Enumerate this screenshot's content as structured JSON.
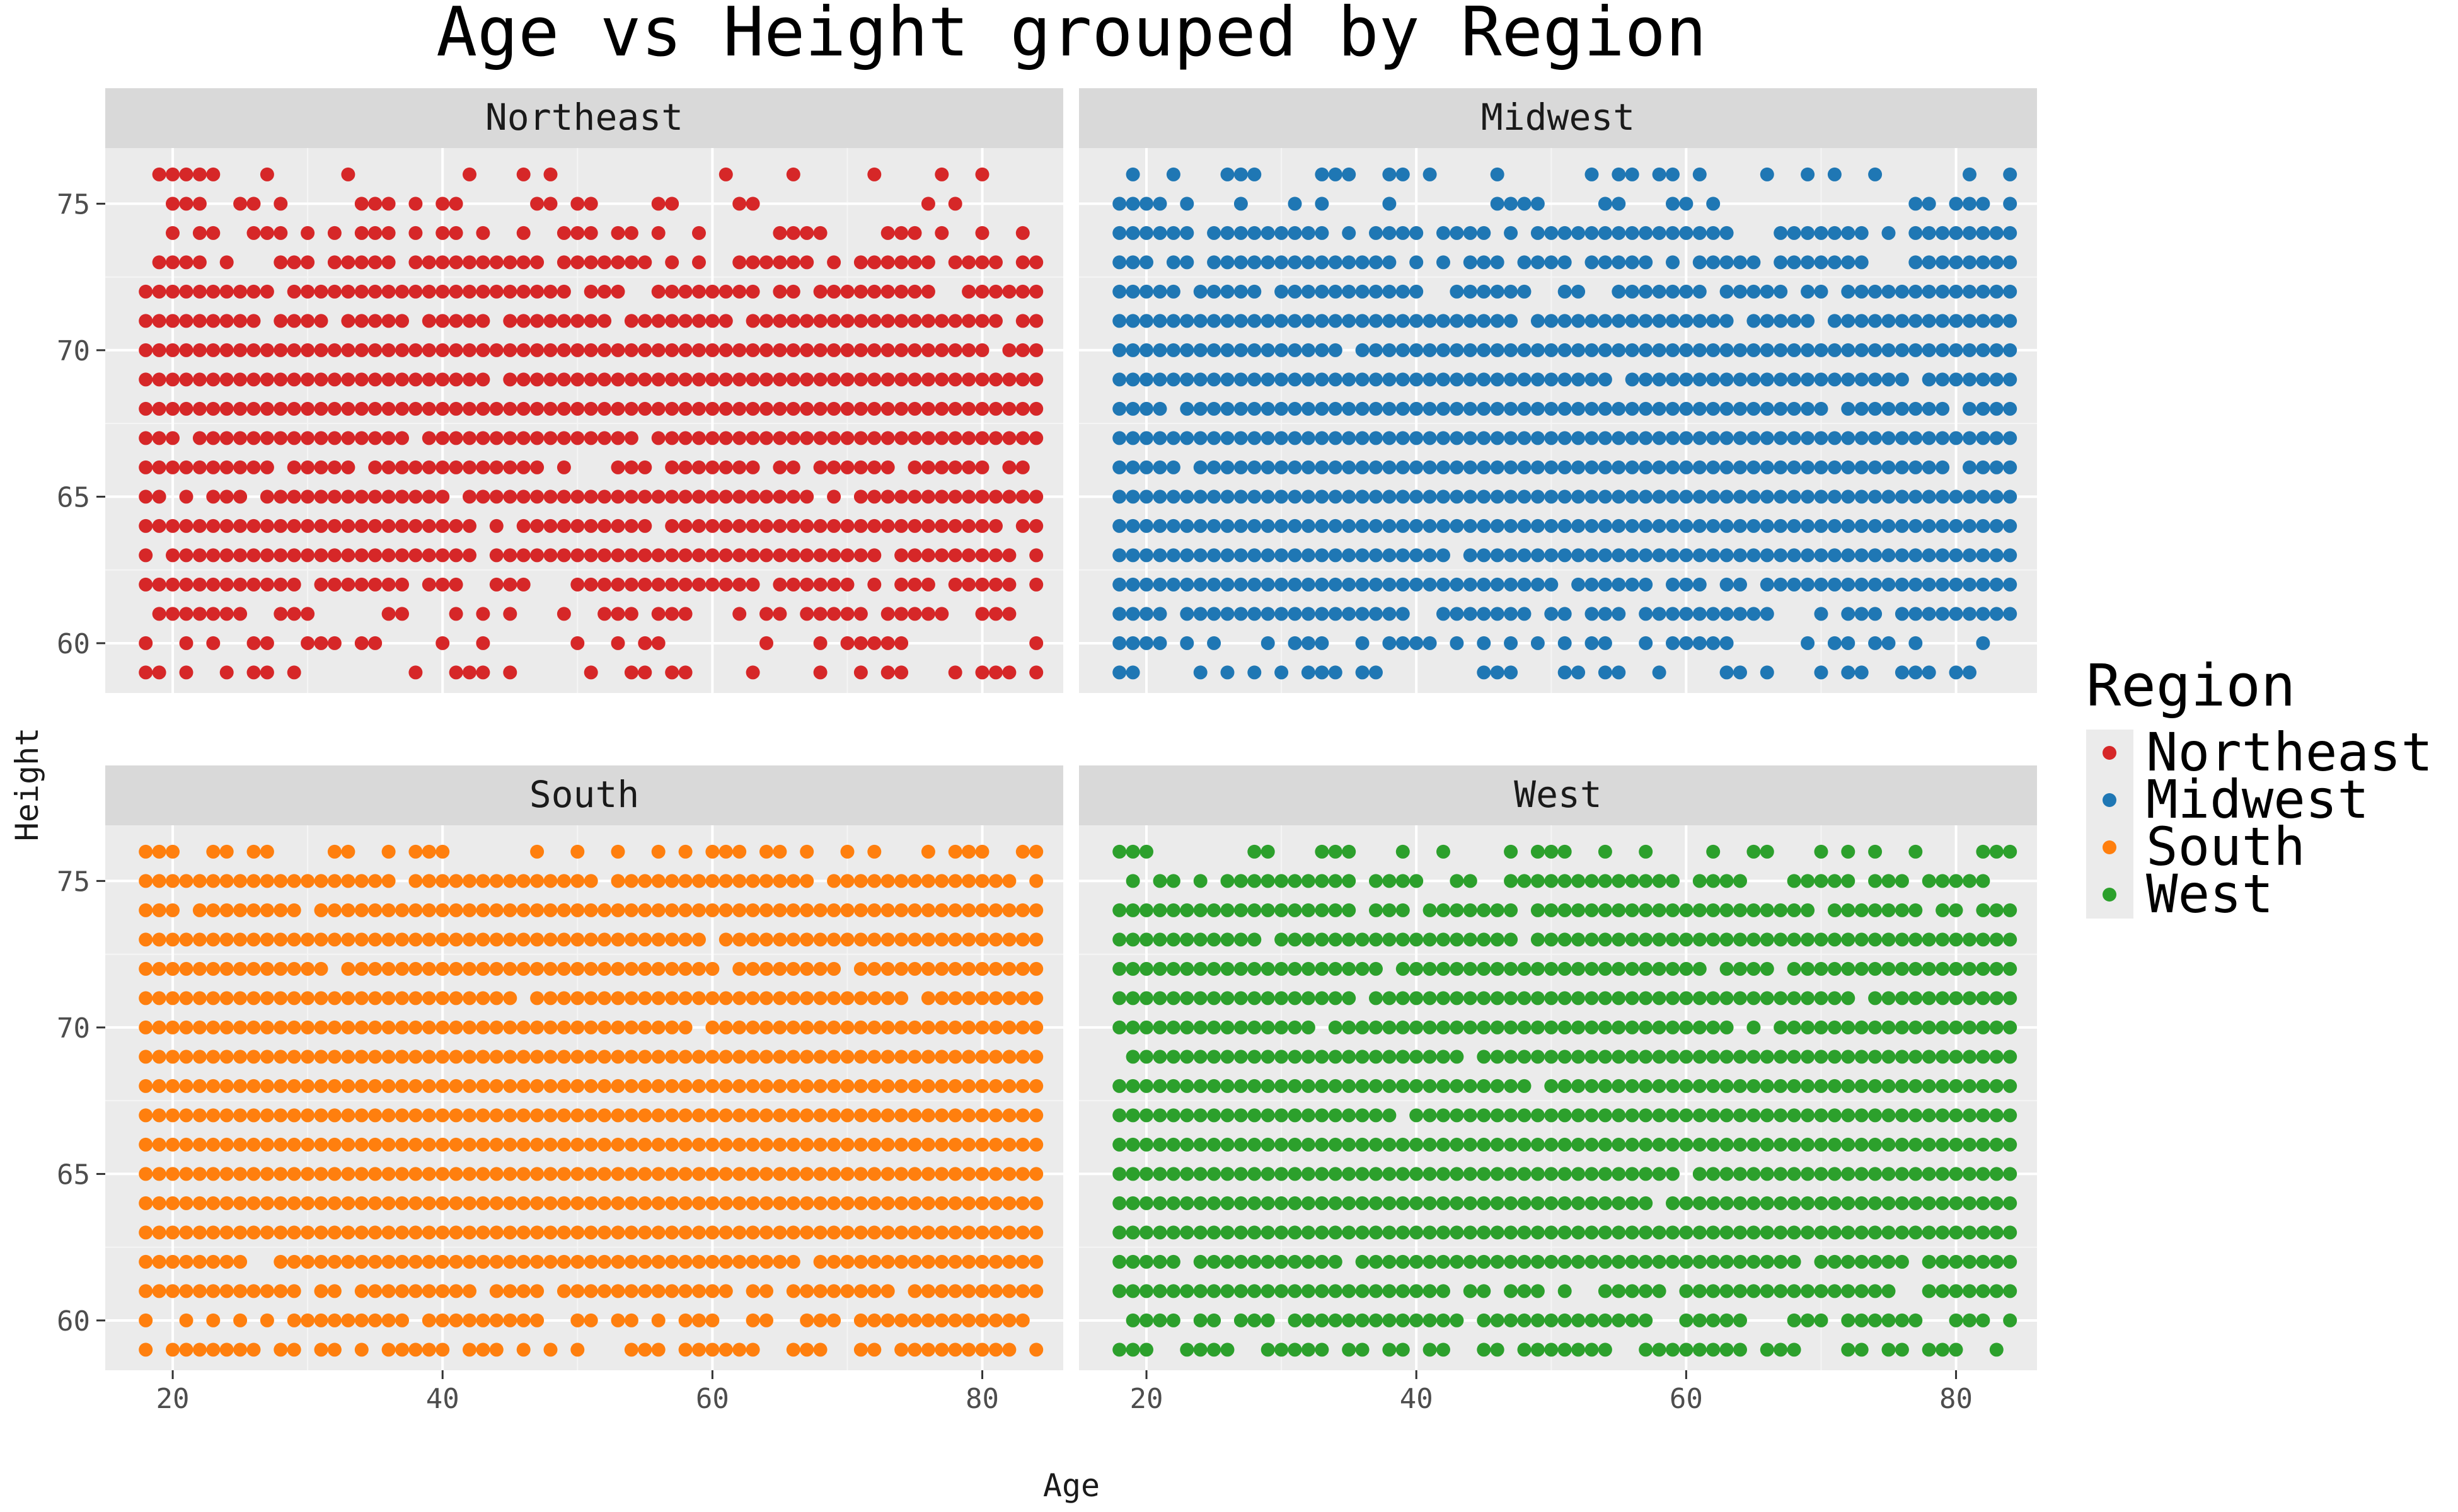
{
  "chart_data": {
    "type": "scatter",
    "title": "Age vs Height grouped by Region",
    "xlabel": "Age",
    "ylabel": "Height",
    "xlim": [
      15,
      86
    ],
    "ylim": [
      58.3,
      76.9
    ],
    "x_ticks": [
      20,
      40,
      60,
      80
    ],
    "y_ticks": [
      60,
      65,
      70,
      75
    ],
    "x_tick_labels": [
      "20",
      "40",
      "60",
      "80"
    ],
    "y_tick_labels": [
      "60",
      "65",
      "70",
      "75"
    ],
    "grid": true,
    "legend": {
      "title": "Region",
      "position": "right",
      "entries": [
        "Northeast",
        "Midwest",
        "South",
        "West"
      ]
    },
    "panels": [
      {
        "name": "Northeast",
        "color": "#d62728",
        "age_range": [
          18,
          84
        ],
        "heights": [
          59,
          60,
          61,
          62,
          63,
          64,
          65,
          66,
          67,
          68,
          69,
          70,
          71,
          72,
          73,
          74,
          75,
          76
        ],
        "density": [
          0.34,
          0.38,
          0.55,
          0.85,
          0.96,
          0.93,
          0.92,
          0.9,
          0.99,
          1.0,
          0.98,
          0.92,
          0.93,
          0.9,
          0.72,
          0.47,
          0.27,
          0.2
        ],
        "seed": 11
      },
      {
        "name": "Midwest",
        "color": "#1f77b4",
        "age_range": [
          18,
          84
        ],
        "heights": [
          59,
          60,
          61,
          62,
          63,
          64,
          65,
          66,
          67,
          68,
          69,
          70,
          71,
          72,
          73,
          74,
          75,
          76
        ],
        "density": [
          0.38,
          0.58,
          0.8,
          0.93,
          0.97,
          0.99,
          1.0,
          0.98,
          0.99,
          0.98,
          0.99,
          0.96,
          0.92,
          0.9,
          0.72,
          0.8,
          0.45,
          0.4
        ],
        "seed": 23
      },
      {
        "name": "South",
        "color": "#ff7f0e",
        "age_range": [
          18,
          84
        ],
        "heights": [
          59,
          60,
          61,
          62,
          63,
          64,
          65,
          66,
          67,
          68,
          69,
          70,
          71,
          72,
          73,
          74,
          75,
          76
        ],
        "density": [
          0.62,
          0.82,
          0.9,
          0.97,
          1.0,
          1.0,
          1.0,
          1.0,
          1.0,
          1.0,
          1.0,
          0.97,
          0.97,
          0.96,
          0.97,
          0.95,
          0.95,
          0.45
        ],
        "seed": 37
      },
      {
        "name": "West",
        "color": "#2ca02c",
        "age_range": [
          18,
          84
        ],
        "heights": [
          59,
          60,
          61,
          62,
          63,
          64,
          65,
          66,
          67,
          68,
          69,
          70,
          71,
          72,
          73,
          74,
          75,
          76
        ],
        "density": [
          0.55,
          0.78,
          0.9,
          0.96,
          0.98,
          0.99,
          0.99,
          0.98,
          0.99,
          0.98,
          0.97,
          0.96,
          0.96,
          0.96,
          0.92,
          0.82,
          0.72,
          0.42
        ],
        "seed": 53
      }
    ]
  }
}
